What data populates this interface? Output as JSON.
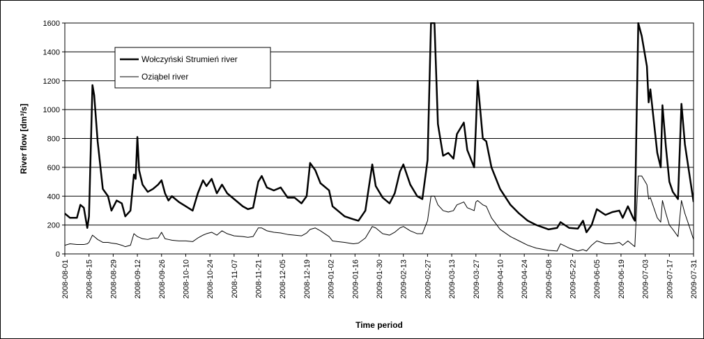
{
  "chart_data": {
    "type": "line",
    "y_label": "River flow [dm³/s]",
    "x_label": "Time period",
    "ylim": [
      0,
      1600
    ],
    "yticks": [
      0,
      200,
      400,
      600,
      800,
      1000,
      1200,
      1400,
      1600
    ],
    "grid": true,
    "legend": "upper left",
    "xlim": [
      "2008-08-01",
      "2009-07-31"
    ],
    "xticks": [
      "2008-08-01",
      "2008-08-15",
      "2008-08-29",
      "2008-09-12",
      "2008-09-26",
      "2008-10-10",
      "2008-10-24",
      "2008-11-07",
      "2008-11-21",
      "2008-12-05",
      "2008-12-19",
      "2009-01-02",
      "2009-01-16",
      "2009-01-30",
      "2009-02-13",
      "2009-02-27",
      "2009-03-13",
      "2009-03-27",
      "2009-04-10",
      "2009-04-24",
      "2009-05-08",
      "2009-05-22",
      "2009-06-05",
      "2009-06-19",
      "2009-07-03",
      "2009-07-17",
      "2009-07-31"
    ],
    "x": [
      "2008-08-01",
      "2008-08-04",
      "2008-08-08",
      "2008-08-10",
      "2008-08-12",
      "2008-08-14",
      "2008-08-15",
      "2008-08-17",
      "2008-08-18",
      "2008-08-20",
      "2008-08-23",
      "2008-08-26",
      "2008-08-28",
      "2008-08-31",
      "2008-09-03",
      "2008-09-05",
      "2008-09-08",
      "2008-09-10",
      "2008-09-11",
      "2008-09-12",
      "2008-09-13",
      "2008-09-15",
      "2008-09-18",
      "2008-09-21",
      "2008-09-24",
      "2008-09-26",
      "2008-09-28",
      "2008-09-30",
      "2008-10-02",
      "2008-10-06",
      "2008-10-10",
      "2008-10-14",
      "2008-10-17",
      "2008-10-20",
      "2008-10-22",
      "2008-10-25",
      "2008-10-28",
      "2008-10-31",
      "2008-11-03",
      "2008-11-07",
      "2008-11-12",
      "2008-11-15",
      "2008-11-18",
      "2008-11-21",
      "2008-11-23",
      "2008-11-26",
      "2008-11-30",
      "2008-12-04",
      "2008-12-08",
      "2008-12-12",
      "2008-12-16",
      "2008-12-19",
      "2008-12-21",
      "2008-12-24",
      "2008-12-27",
      "2009-01-01",
      "2009-01-03",
      "2009-01-06",
      "2009-01-10",
      "2009-01-15",
      "2009-01-18",
      "2009-01-22",
      "2009-01-26",
      "2009-01-28",
      "2009-02-01",
      "2009-02-05",
      "2009-02-08",
      "2009-02-11",
      "2009-02-13",
      "2009-02-17",
      "2009-02-21",
      "2009-02-24",
      "2009-02-27",
      "2009-03-01",
      "2009-03-03",
      "2009-03-05",
      "2009-03-08",
      "2009-03-11",
      "2009-03-14",
      "2009-03-16",
      "2009-03-20",
      "2009-03-22",
      "2009-03-26",
      "2009-03-27",
      "2009-03-28",
      "2009-03-31",
      "2009-04-02",
      "2009-04-05",
      "2009-04-10",
      "2009-04-16",
      "2009-04-21",
      "2009-04-26",
      "2009-05-01",
      "2009-05-08",
      "2009-05-13",
      "2009-05-15",
      "2009-05-20",
      "2009-05-25",
      "2009-05-28",
      "2009-05-30",
      "2009-06-02",
      "2009-06-05",
      "2009-06-10",
      "2009-06-14",
      "2009-06-18",
      "2009-06-20",
      "2009-06-23",
      "2009-06-26",
      "2009-06-27",
      "2009-06-29",
      "2009-07-01",
      "2009-07-04",
      "2009-07-05",
      "2009-07-06",
      "2009-07-10",
      "2009-07-12",
      "2009-07-13",
      "2009-07-15",
      "2009-07-17",
      "2009-07-19",
      "2009-07-22",
      "2009-07-24",
      "2009-07-26",
      "2009-07-28",
      "2009-07-31"
    ],
    "series": [
      {
        "name": "Wołczyński Strumień river",
        "color": "#000000",
        "width": 2.5,
        "values": [
          280,
          250,
          250,
          340,
          320,
          180,
          260,
          1170,
          1100,
          780,
          450,
          400,
          300,
          370,
          350,
          260,
          300,
          550,
          520,
          810,
          580,
          480,
          430,
          450,
          480,
          510,
          420,
          370,
          400,
          360,
          330,
          300,
          420,
          510,
          470,
          520,
          420,
          480,
          420,
          380,
          330,
          310,
          320,
          500,
          540,
          460,
          440,
          460,
          390,
          390,
          350,
          400,
          630,
          580,
          490,
          440,
          330,
          300,
          260,
          240,
          230,
          300,
          620,
          470,
          390,
          350,
          420,
          570,
          620,
          480,
          400,
          380,
          650,
          1600,
          1600,
          900,
          680,
          700,
          660,
          830,
          910,
          720,
          600,
          880,
          1200,
          800,
          780,
          600,
          450,
          340,
          280,
          230,
          200,
          170,
          180,
          220,
          180,
          175,
          230,
          150,
          200,
          310,
          270,
          290,
          300,
          250,
          330,
          250,
          230,
          1600,
          1510,
          1300,
          1050,
          1140,
          700,
          600,
          1030,
          740,
          500,
          430,
          380,
          1040,
          760,
          600,
          360
        ]
      },
      {
        "name": "Oziąbel river",
        "color": "#000000",
        "width": 1,
        "values": [
          60,
          70,
          65,
          65,
          65,
          70,
          80,
          130,
          120,
          100,
          80,
          80,
          75,
          70,
          60,
          50,
          60,
          140,
          130,
          120,
          115,
          105,
          100,
          110,
          110,
          150,
          105,
          100,
          95,
          90,
          90,
          85,
          110,
          130,
          140,
          150,
          130,
          160,
          140,
          125,
          120,
          115,
          120,
          180,
          180,
          160,
          150,
          145,
          135,
          130,
          125,
          145,
          170,
          180,
          160,
          120,
          90,
          85,
          80,
          70,
          75,
          110,
          190,
          180,
          140,
          130,
          150,
          180,
          190,
          160,
          140,
          140,
          230,
          400,
          400,
          340,
          300,
          290,
          300,
          340,
          360,
          320,
          300,
          360,
          370,
          340,
          330,
          250,
          170,
          120,
          90,
          60,
          40,
          25,
          20,
          70,
          40,
          20,
          30,
          20,
          60,
          90,
          70,
          70,
          80,
          60,
          90,
          60,
          50,
          540,
          540,
          480,
          380,
          390,
          250,
          220,
          370,
          280,
          200,
          170,
          120,
          370,
          280,
          210,
          100
        ]
      }
    ]
  }
}
